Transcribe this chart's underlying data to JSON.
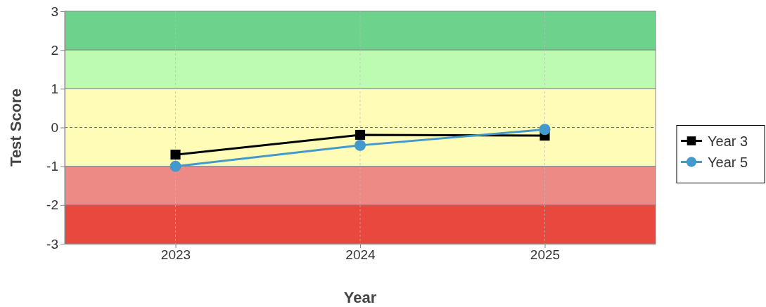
{
  "chart_data": {
    "type": "line",
    "xlabel": "Year",
    "ylabel": "Test Score",
    "x": [
      2023,
      2024,
      2025
    ],
    "xlim": [
      2022.4,
      2025.6
    ],
    "xticks": [
      2023,
      2024,
      2025
    ],
    "ylim": [
      -3,
      3
    ],
    "yticks": [
      -3,
      -2,
      -1,
      0,
      1,
      2,
      3
    ],
    "grid": "x",
    "legend": "right",
    "series": [
      {
        "name": "Year 3",
        "color": "#000000",
        "marker": "square",
        "values": [
          -0.7,
          -0.19,
          -0.21
        ]
      },
      {
        "name": "Year 5",
        "color": "#4499cc",
        "marker": "circle",
        "values": [
          -1.0,
          -0.46,
          -0.05
        ]
      }
    ],
    "bands": [
      {
        "axis": "y",
        "from": 2,
        "to": 3,
        "color": "#6dd38c"
      },
      {
        "axis": "y",
        "from": 1,
        "to": 2,
        "color": "#bdfbb3"
      },
      {
        "axis": "y",
        "from": -1,
        "to": 1,
        "color": "#fefcb7"
      },
      {
        "axis": "y",
        "from": -2,
        "to": -1,
        "color": "#ee8a85"
      },
      {
        "axis": "y",
        "from": -3,
        "to": -2,
        "color": "#e8483e"
      }
    ],
    "ref_lines": [
      {
        "axis": "y",
        "value": 0,
        "color": "#6a6ac8",
        "line_style": "dashed"
      }
    ]
  }
}
